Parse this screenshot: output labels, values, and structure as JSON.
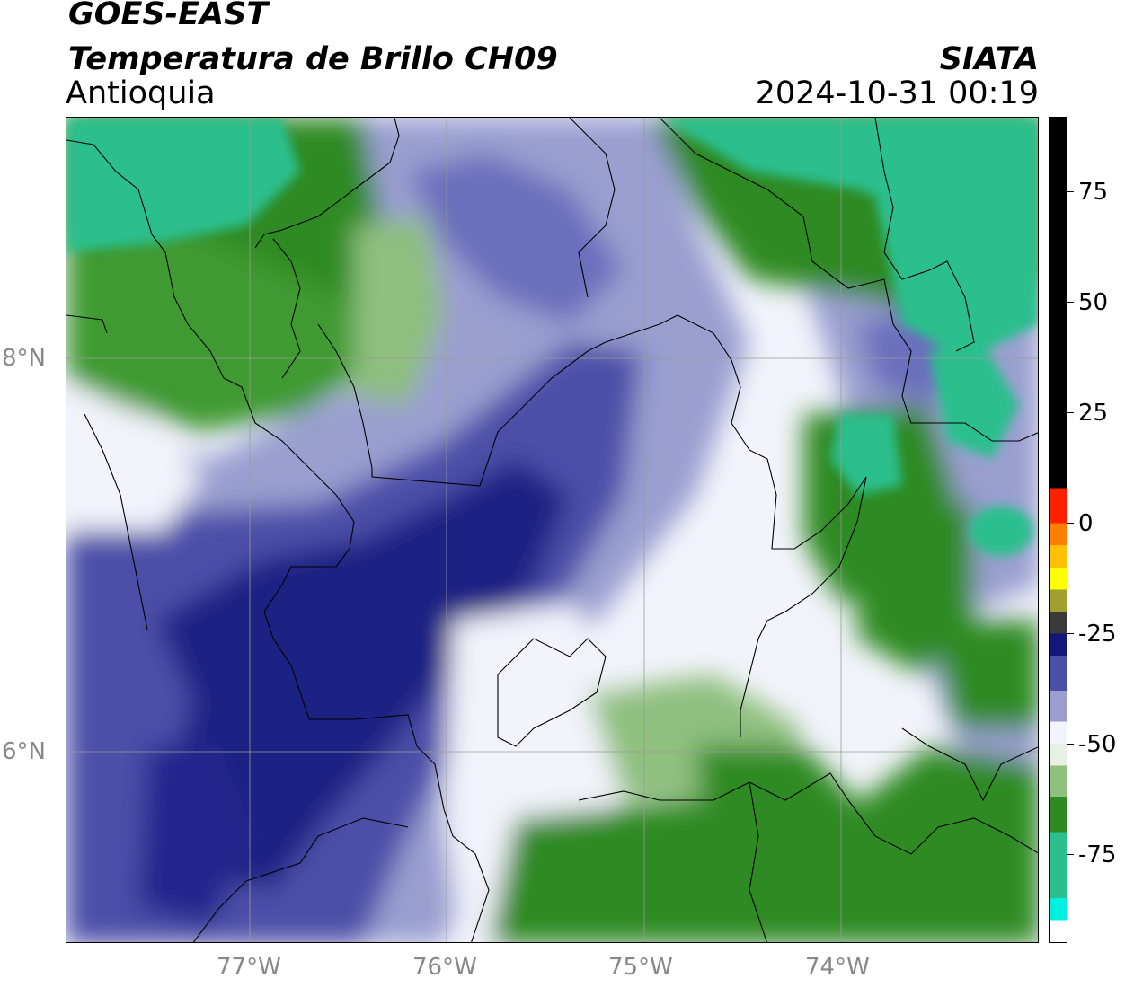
{
  "header": {
    "satellite": "GOES-EAST",
    "product": "Temperatura de Brillo CH09",
    "region": "Antioquia",
    "agency": "SIATA",
    "datetime": "2024-10-31 00:19"
  },
  "map": {
    "longitude_labels": [
      "77°W",
      "76°W",
      "75°W",
      "74°W"
    ],
    "latitude_labels": [
      "8°N",
      "6°N"
    ],
    "gridlines": true,
    "colors": {
      "green": "#2f8a22",
      "green_light": "#8fc07e",
      "teal": "#2bbf8d",
      "white": "#f6f6fa",
      "blue_light": "#9a9fd0",
      "blue": "#4b4fa8",
      "navy": "#1d2283"
    }
  },
  "colorbar": {
    "tick_labels": [
      "75",
      "50",
      "25",
      "0",
      "-25",
      "-50",
      "-75"
    ],
    "tick_values": [
      75,
      50,
      25,
      0,
      -25,
      -50,
      -75
    ],
    "range": [
      -95,
      92
    ],
    "segments": [
      {
        "from": -95,
        "to": -90,
        "color": "#ffffff"
      },
      {
        "from": -90,
        "to": -85,
        "color": "#00f0e0"
      },
      {
        "from": -85,
        "to": -70,
        "color": "#2bbf8d"
      },
      {
        "from": -70,
        "to": -62,
        "color": "#2f8a22"
      },
      {
        "from": -62,
        "to": -55,
        "color": "#8fc07e"
      },
      {
        "from": -55,
        "to": -50,
        "color": "#e8f0e2"
      },
      {
        "from": -50,
        "to": -45,
        "color": "#f3f3fb"
      },
      {
        "from": -45,
        "to": -38,
        "color": "#9a9fd0"
      },
      {
        "from": -38,
        "to": -30,
        "color": "#4b4fa8"
      },
      {
        "from": -30,
        "to": -25,
        "color": "#14177a"
      },
      {
        "from": -25,
        "to": -20,
        "color": "#3a3a3a"
      },
      {
        "from": -20,
        "to": -15,
        "color": "#a0a030"
      },
      {
        "from": -15,
        "to": -10,
        "color": "#ffff00"
      },
      {
        "from": -10,
        "to": -5,
        "color": "#ffc000"
      },
      {
        "from": -5,
        "to": 0,
        "color": "#ff8000"
      },
      {
        "from": 0,
        "to": 8,
        "color": "#ff2000"
      },
      {
        "from": 8,
        "to": 92,
        "color": "#000000"
      }
    ]
  }
}
